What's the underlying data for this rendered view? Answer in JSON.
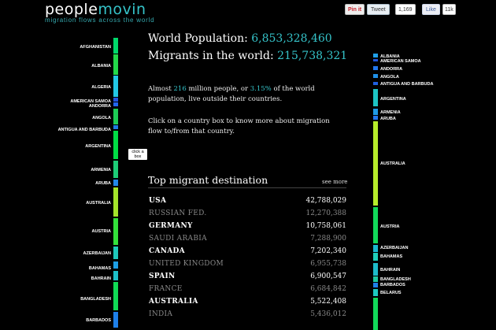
{
  "brand": {
    "logo_people": "people",
    "logo_movin": "movin",
    "tagline": "migration flows across the world"
  },
  "social": {
    "pin": "Pin it",
    "tweet": "Tweet",
    "tweet_count": "1,169",
    "fb": "Like",
    "fb_count": "11k"
  },
  "stats": {
    "world_population_label": "World Population: ",
    "world_population_value": "6,853,328,460",
    "migrants_label": "Migrants in the world: ",
    "migrants_value": "215,738,321"
  },
  "intro": {
    "p1_a": "Almost ",
    "p1_hl1": "216",
    "p1_b": " million people, or ",
    "p1_hl2": "3.15%",
    "p1_c": " of the world population, live outside their countries.",
    "p2": "Click on a country box to know more about migration flow to/from that country."
  },
  "tooltip": "click a box",
  "top_dest": {
    "title": "Top migrant destination",
    "see_more": "see more",
    "rows": [
      {
        "country": "USA",
        "value": "42,788,029"
      },
      {
        "country": "Russian Fed.",
        "value": "12,270,388"
      },
      {
        "country": "Germany",
        "value": "10,758,061"
      },
      {
        "country": "Saudi Arabia",
        "value": "7,288,900"
      },
      {
        "country": "Canada",
        "value": "7,202,340"
      },
      {
        "country": "United Kingdom",
        "value": "6,955,738"
      },
      {
        "country": "Spain",
        "value": "6,900,547"
      },
      {
        "country": "France",
        "value": "6,684,842"
      },
      {
        "country": "Australia",
        "value": "5,522,408"
      },
      {
        "country": "India",
        "value": "5,436,012"
      }
    ]
  },
  "left_column": {
    "labels": [
      "AFGHANISTAN",
      "ALBANIA",
      "ALGERIA",
      "AMERICAN SAMOA",
      "ANDORRA",
      "ANGOLA",
      "ANTIGUA AND BARBUDA",
      "ARGENTINA",
      "ARMENIA",
      "ARUBA",
      "AUSTRALIA",
      "AUSTRIA",
      "AZERBAIJAN",
      "BAHAMAS",
      "BAHRAIN",
      "BANGLADESH",
      "BARBADOS"
    ]
  },
  "right_column": {
    "labels": [
      "ALBANIA",
      "AMERICAN SAMOA",
      "ANDORRA",
      "ANGOLA",
      "ANTIGUA AND BARBUDA",
      "ARGENTINA",
      "ARMENIA",
      "ARUBA",
      "AUSTRALIA",
      "AUSTRIA",
      "AZERBAIJAN",
      "BAHAMAS",
      "BAHRAIN",
      "BANGLADESH",
      "BARBADOS",
      "BELARUS"
    ]
  }
}
